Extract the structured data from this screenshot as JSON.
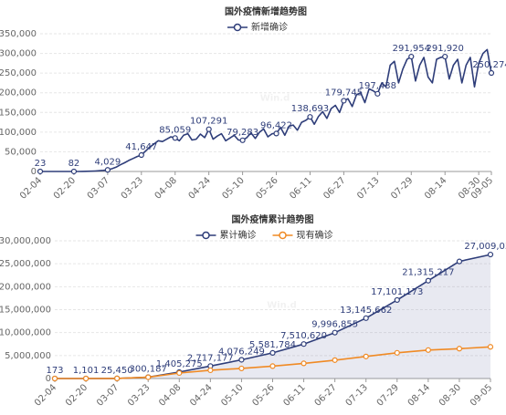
{
  "chart_data": [
    {
      "type": "line",
      "title": "国外疫情新增趋势图",
      "watermark": "Win.d",
      "symbols": "labeled",
      "grid": true,
      "legend": "top",
      "categories": [
        "02-04",
        null,
        null,
        null,
        null,
        null,
        null,
        null,
        "02-20",
        null,
        null,
        null,
        null,
        null,
        null,
        null,
        "03-07",
        null,
        null,
        null,
        null,
        null,
        null,
        null,
        "03-23",
        null,
        null,
        null,
        null,
        null,
        null,
        null,
        "04-08",
        null,
        null,
        null,
        null,
        null,
        null,
        null,
        "04-24",
        null,
        null,
        null,
        null,
        null,
        null,
        null,
        "05-10",
        null,
        null,
        null,
        null,
        null,
        null,
        null,
        "05-26",
        null,
        null,
        null,
        null,
        null,
        null,
        null,
        "06-11",
        null,
        null,
        null,
        null,
        null,
        null,
        null,
        "06-27",
        null,
        null,
        null,
        null,
        null,
        null,
        null,
        "07-13",
        null,
        null,
        null,
        null,
        null,
        null,
        null,
        "07-29",
        null,
        null,
        null,
        null,
        null,
        null,
        null,
        "08-14",
        null,
        null,
        null,
        null,
        null,
        null,
        null,
        "08-30",
        null,
        null,
        "09-05"
      ],
      "ylim": [
        0,
        350000
      ],
      "yticks": [
        0,
        {
          "value": 50000,
          "label": "50,000"
        },
        {
          "value": 100000,
          "label": "100,000"
        },
        {
          "value": 150000,
          "label": "150,000"
        },
        {
          "value": 200000,
          "label": "200,000"
        },
        {
          "value": 250000,
          "label": "250,000"
        },
        {
          "value": 300000,
          "label": "300,000"
        },
        {
          "value": 350000,
          "label": "350,000"
        }
      ],
      "series": [
        {
          "name": "新增确诊",
          "color": "#2e3d79",
          "values": [
            23,
            30,
            40,
            50,
            60,
            70,
            75,
            80,
            82,
            100,
            200,
            400,
            700,
            1200,
            1800,
            2800,
            4029,
            7000,
            11000,
            17000,
            22000,
            28000,
            33000,
            38000,
            41647,
            52000,
            62000,
            70000,
            78000,
            76000,
            82000,
            88000,
            85059,
            78000,
            92000,
            96000,
            80000,
            82000,
            95000,
            86000,
            107291,
            82000,
            90000,
            96000,
            78000,
            85000,
            92000,
            80000,
            79283,
            86000,
            98000,
            84000,
            100000,
            108000,
            88000,
            96000,
            96422,
            112000,
            92000,
            115000,
            118000,
            105000,
            125000,
            130000,
            138693,
            120000,
            140000,
            152000,
            135000,
            160000,
            168000,
            150000,
            179745,
            185000,
            165000,
            195000,
            200000,
            175000,
            210000,
            205000,
            197438,
            225000,
            215000,
            270000,
            280000,
            225000,
            260000,
            285000,
            291954,
            230000,
            270000,
            290000,
            240000,
            225000,
            285000,
            290000,
            291920,
            235000,
            270000,
            285000,
            225000,
            270000,
            290000,
            215000,
            275000,
            300000,
            310000,
            250274
          ],
          "value_labels": [
            "23",
            null,
            null,
            null,
            null,
            null,
            null,
            null,
            "82",
            null,
            null,
            null,
            null,
            null,
            null,
            null,
            "4,029",
            null,
            null,
            null,
            null,
            null,
            null,
            null,
            "41,647",
            null,
            null,
            null,
            null,
            null,
            null,
            null,
            "85,059",
            null,
            null,
            null,
            null,
            null,
            null,
            null,
            "107,291",
            null,
            null,
            null,
            null,
            null,
            null,
            null,
            "79,283",
            null,
            null,
            null,
            null,
            null,
            null,
            null,
            "96,422",
            null,
            null,
            null,
            null,
            null,
            null,
            null,
            "138,693",
            null,
            null,
            null,
            null,
            null,
            null,
            null,
            "179,745",
            null,
            null,
            null,
            null,
            null,
            null,
            null,
            "197,438",
            null,
            null,
            null,
            null,
            null,
            null,
            null,
            "291,954",
            null,
            null,
            null,
            null,
            null,
            null,
            null,
            "291,920",
            null,
            null,
            null,
            null,
            null,
            null,
            null,
            null,
            null,
            null,
            "250,274"
          ]
        }
      ]
    },
    {
      "type": "line",
      "title": "国外疫情累计趋势图",
      "watermark": "Win.d",
      "symbols": "all",
      "grid": true,
      "legend": "top",
      "categories": [
        "02-04",
        "02-20",
        "03-07",
        "03-23",
        "04-08",
        "04-24",
        "05-10",
        "05-26",
        "06-11",
        "06-27",
        "07-13",
        "07-29",
        "08-14",
        "08-30",
        "09-05"
      ],
      "ylim": [
        0,
        30000000
      ],
      "yticks": [
        0,
        {
          "value": 5000000,
          "label": "5,000,000"
        },
        {
          "value": 10000000,
          "label": "10,000,000"
        },
        {
          "value": 15000000,
          "label": "15,000,000"
        },
        {
          "value": 20000000,
          "label": "20,000,000"
        },
        {
          "value": 25000000,
          "label": "25,000,000"
        },
        {
          "value": 30000000,
          "label": "30,000,000"
        }
      ],
      "series": [
        {
          "name": "累计确诊",
          "color": "#2e3d79",
          "area": true,
          "values": [
            173,
            1101,
            25450,
            300187,
            1405275,
            2717177,
            4076249,
            5581784,
            7510620,
            9996855,
            13145662,
            17101173,
            21315217,
            25500000,
            27009030
          ],
          "value_labels": [
            "173",
            "1,101",
            "25,450",
            "300,187",
            "1,405,275",
            "2,717,177",
            "4,076,249",
            "5,581,784",
            "7,510,620",
            "9,996,855",
            "13,145,662",
            "17,101,173",
            "21,315,217",
            null,
            "27,009,030"
          ]
        },
        {
          "name": "现有确诊",
          "color": "#f08a24",
          "values": [
            170,
            800,
            20000,
            280000,
            1200000,
            1800000,
            2200000,
            2700000,
            3300000,
            4000000,
            4800000,
            5600000,
            6200000,
            6500000,
            6900000
          ]
        }
      ]
    }
  ]
}
